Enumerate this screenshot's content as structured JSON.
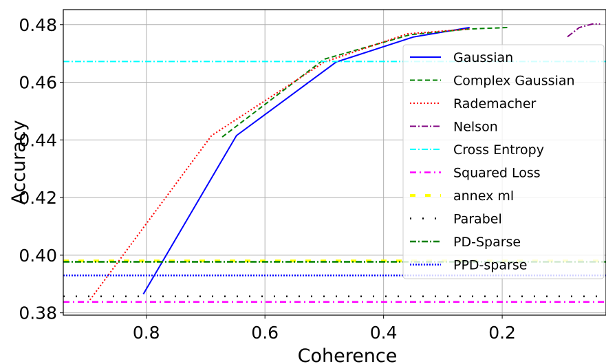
{
  "chart_data": {
    "type": "line",
    "title": "",
    "xlabel": "Coherence",
    "ylabel": "Accuracy",
    "xlim": [
      0.94,
      0.025
    ],
    "ylim": [
      0.3792,
      0.4852
    ],
    "x_reversed": true,
    "grid": true,
    "legend_position": "right",
    "xticks": [
      {
        "value": 0.8,
        "label": "0.8"
      },
      {
        "value": 0.6,
        "label": "0.6"
      },
      {
        "value": 0.4,
        "label": "0.4"
      },
      {
        "value": 0.2,
        "label": "0.2"
      }
    ],
    "yticks": [
      {
        "value": 0.38,
        "label": "0.38"
      },
      {
        "value": 0.4,
        "label": "0.40"
      },
      {
        "value": 0.42,
        "label": "0.42"
      },
      {
        "value": 0.44,
        "label": "0.44"
      },
      {
        "value": 0.46,
        "label": "0.46"
      },
      {
        "value": 0.48,
        "label": "0.48"
      }
    ],
    "series": [
      {
        "name": "Gaussian",
        "kind": "line",
        "color": "#0000ff",
        "dash": "",
        "width": 2,
        "x": [
          0.805,
          0.648,
          0.48,
          0.35,
          0.255
        ],
        "y": [
          0.3865,
          0.4415,
          0.467,
          0.4757,
          0.479
        ]
      },
      {
        "name": "Complex Gaussian",
        "kind": "line",
        "color": "#008000",
        "dash": "7,4",
        "width": 2,
        "x": [
          0.672,
          0.5,
          0.355,
          0.255,
          0.19
        ],
        "y": [
          0.441,
          0.468,
          0.4765,
          0.4785,
          0.479
        ]
      },
      {
        "name": "Rademacher",
        "kind": "line",
        "color": "#ff0000",
        "dash": "2,3",
        "width": 2,
        "x": [
          0.895,
          0.69,
          0.5,
          0.36,
          0.255
        ],
        "y": [
          0.3845,
          0.4415,
          0.467,
          0.4768,
          0.4785
        ]
      },
      {
        "name": "Nelson",
        "kind": "line",
        "color": "#800080",
        "dash": "9,3,2,3",
        "width": 2,
        "x": [
          0.09,
          0.07,
          0.048,
          0.035
        ],
        "y": [
          0.4758,
          0.479,
          0.4802,
          0.4802
        ]
      },
      {
        "name": "Cross Entropy",
        "kind": "hline",
        "color": "#00ffff",
        "dash": "9,3,2,3",
        "width": 2,
        "y": 0.4672
      },
      {
        "name": "Squared Loss",
        "kind": "hline",
        "color": "#ff00ff",
        "dash": "9,5,2,5",
        "width": 2.5,
        "y": 0.3838
      },
      {
        "name": "annex ml",
        "kind": "hline",
        "color": "#ffff00",
        "dash": "8,14",
        "width": 4,
        "y": 0.398
      },
      {
        "name": "Parabel",
        "kind": "hline",
        "color": "#000000",
        "dash": "2,16",
        "width": 2.5,
        "y": 0.3857
      },
      {
        "name": "PD-Sparse",
        "kind": "hline",
        "color": "#008000",
        "dash": "9,3,2,3",
        "width": 2.5,
        "y": 0.3977
      },
      {
        "name": "PPD-sparse",
        "kind": "hline",
        "color": "#0000ff",
        "dash": "2,2",
        "width": 2.5,
        "y": 0.393
      }
    ]
  }
}
